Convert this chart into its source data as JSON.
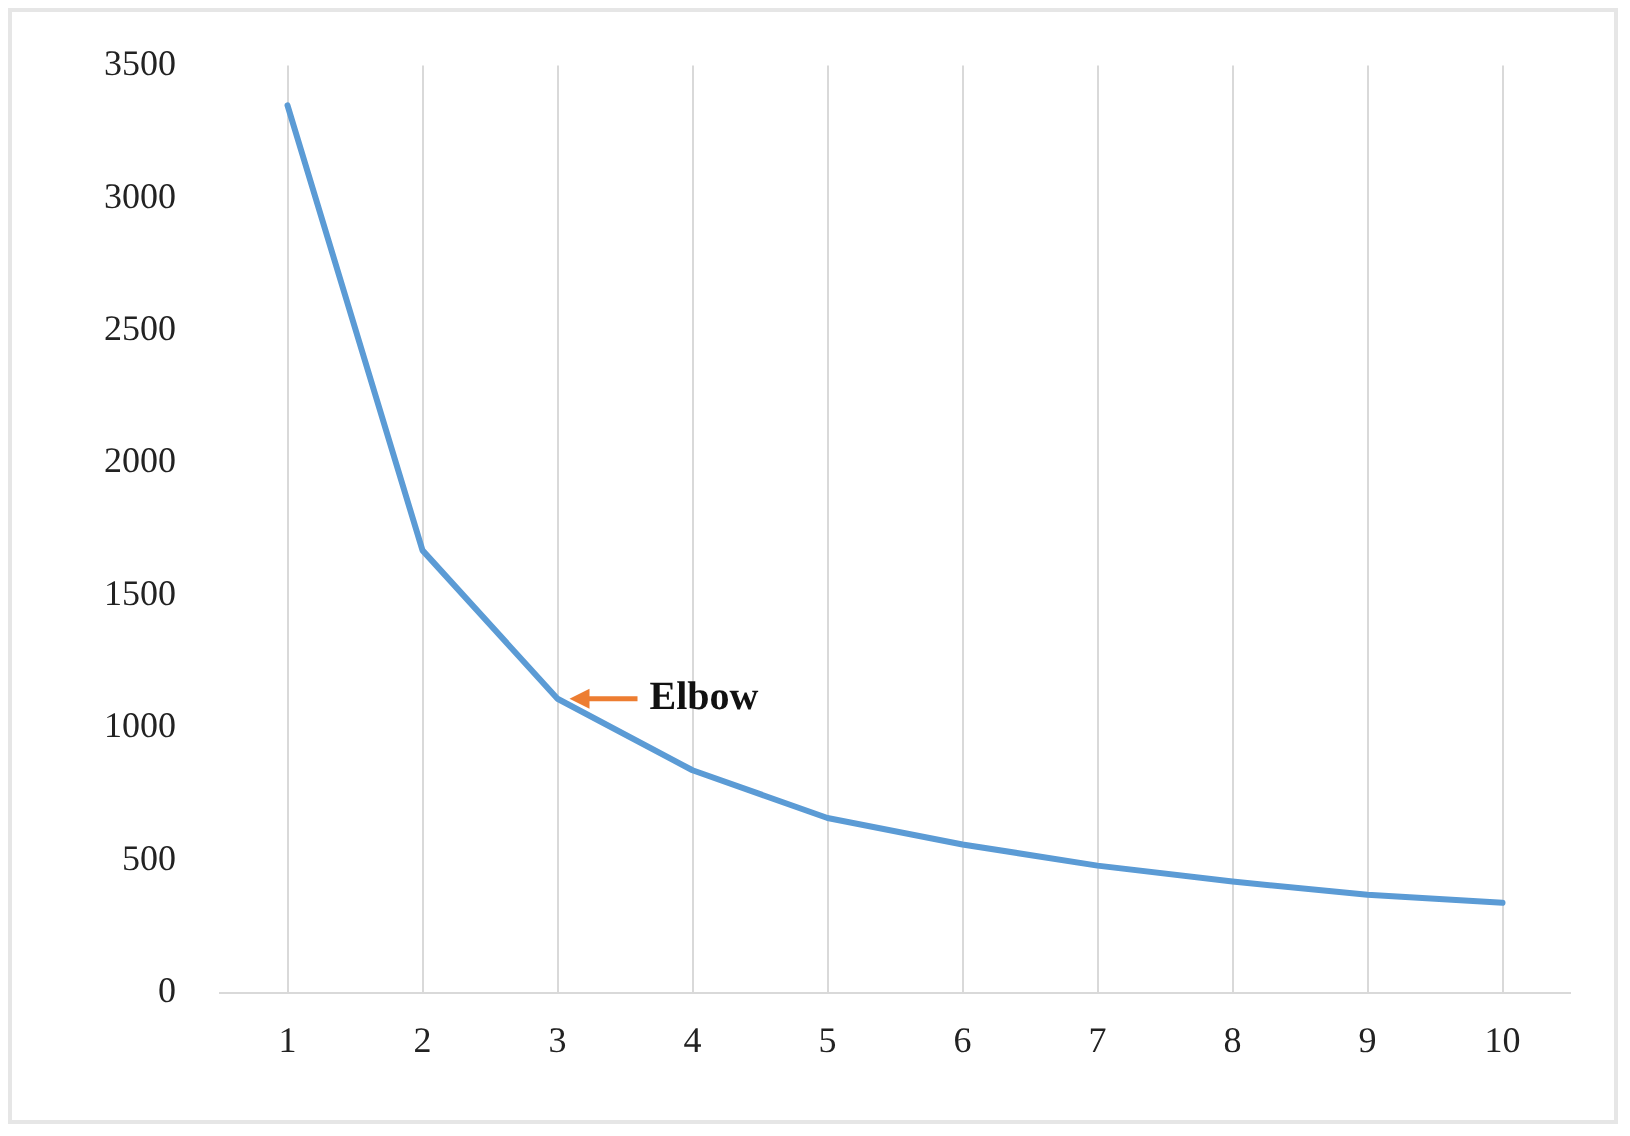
{
  "chart_data": {
    "type": "line",
    "categories": [
      "1",
      "2",
      "3",
      "4",
      "5",
      "6",
      "7",
      "8",
      "9",
      "10"
    ],
    "series": [
      {
        "color": "#5b9bd5",
        "values": [
          3350,
          1670,
          1110,
          840,
          660,
          560,
          480,
          420,
          370,
          340
        ]
      }
    ],
    "ylim": [
      0,
      3500
    ],
    "yticks": [
      0,
      500,
      1000,
      1500,
      2000,
      2500,
      3000,
      3500
    ],
    "grid": "x",
    "legend": false,
    "marker": "none",
    "line_style": "solid",
    "annotations": [
      {
        "text": "Elbow",
        "x": "3",
        "y": 1110
      }
    ]
  }
}
